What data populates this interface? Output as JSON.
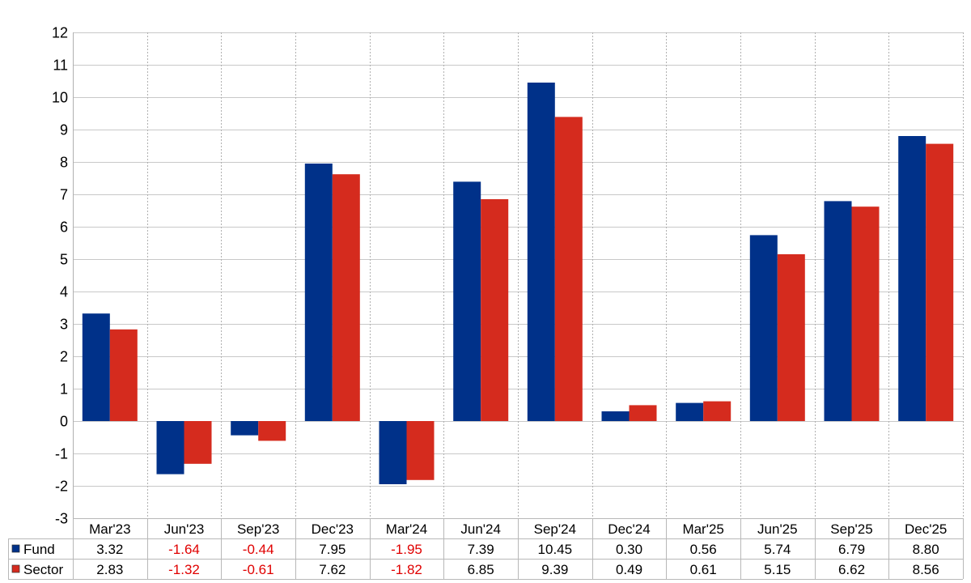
{
  "chart_data": {
    "type": "bar",
    "categories": [
      "Mar'23",
      "Jun'23",
      "Sep'23",
      "Dec'23",
      "Mar'24",
      "Jun'24",
      "Sep'24",
      "Dec'24",
      "Mar'25",
      "Jun'25",
      "Sep'25",
      "Dec'25"
    ],
    "series": [
      {
        "name": "Fund",
        "color": "#003189",
        "values": [
          3.32,
          -1.64,
          -0.44,
          7.95,
          -1.95,
          7.39,
          10.45,
          0.3,
          0.56,
          5.74,
          6.79,
          8.8
        ],
        "labels": [
          "3.32",
          "-1.64",
          "-0.44",
          "7.95",
          "-1.95",
          "7.39",
          "10.45",
          "0.30",
          "0.56",
          "5.74",
          "6.79",
          "8.80"
        ]
      },
      {
        "name": "Sector",
        "color": "#d52b1e",
        "values": [
          2.83,
          -1.32,
          -0.61,
          7.62,
          -1.82,
          6.85,
          9.39,
          0.49,
          0.61,
          5.15,
          6.62,
          8.56
        ],
        "labels": [
          "2.83",
          "-1.32",
          "-0.61",
          "7.62",
          "-1.82",
          "6.85",
          "9.39",
          "0.49",
          "0.61",
          "5.15",
          "6.62",
          "8.56"
        ]
      }
    ],
    "ylim": [
      -3,
      12
    ],
    "yticks": [
      "-3",
      "-2",
      "-1",
      "0",
      "1",
      "2",
      "3",
      "4",
      "5",
      "6",
      "7",
      "8",
      "9",
      "10",
      "11",
      "12"
    ],
    "grid": true,
    "legend": "data table below chart",
    "negative_value_color": "#e00000"
  }
}
